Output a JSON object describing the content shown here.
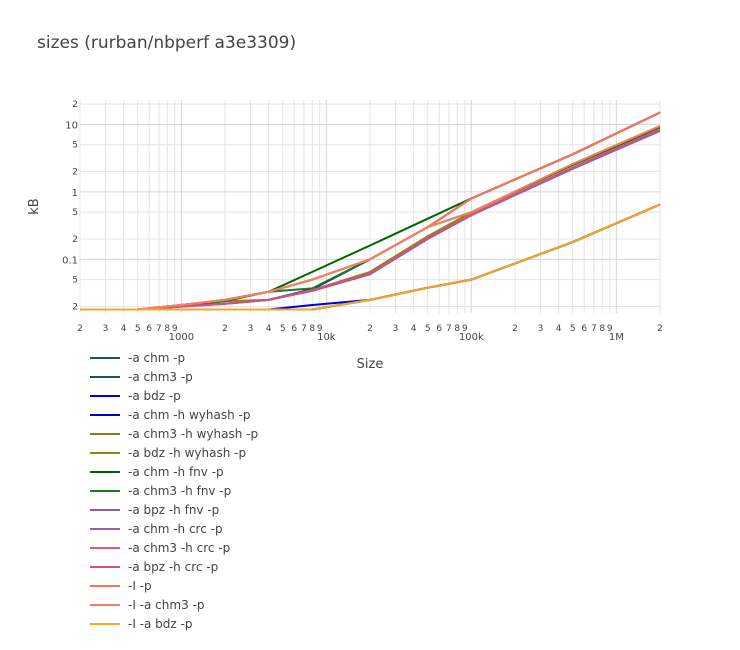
{
  "title": "sizes (rurban/nbperf a3e3309)",
  "chart_data": {
    "type": "line",
    "title": "sizes (rurban/nbperf a3e3309)",
    "xlabel": "Size",
    "ylabel": "kB",
    "x_scale": "log",
    "y_scale": "log",
    "xlim": [
      200,
      2000000
    ],
    "ylim": [
      0.016,
      23
    ],
    "grid": true,
    "legend_position": "bottom-left",
    "x_major_ticks": [
      {
        "value": 1000,
        "label": "1000"
      },
      {
        "value": 10000,
        "label": "10k"
      },
      {
        "value": 100000,
        "label": "100k"
      },
      {
        "value": 1000000,
        "label": "1M"
      }
    ],
    "x_minor_ticks": [
      {
        "value": 200,
        "label": "2"
      },
      {
        "value": 300,
        "label": "3"
      },
      {
        "value": 400,
        "label": "4"
      },
      {
        "value": 500,
        "label": "5"
      },
      {
        "value": 600,
        "label": "6"
      },
      {
        "value": 700,
        "label": "7"
      },
      {
        "value": 800,
        "label": "8"
      },
      {
        "value": 900,
        "label": "9"
      },
      {
        "value": 2000,
        "label": "2"
      },
      {
        "value": 3000,
        "label": "3"
      },
      {
        "value": 4000,
        "label": "4"
      },
      {
        "value": 5000,
        "label": "5"
      },
      {
        "value": 6000,
        "label": "6"
      },
      {
        "value": 7000,
        "label": "7"
      },
      {
        "value": 8000,
        "label": "8"
      },
      {
        "value": 9000,
        "label": "9"
      },
      {
        "value": 20000,
        "label": "2"
      },
      {
        "value": 30000,
        "label": "3"
      },
      {
        "value": 40000,
        "label": "4"
      },
      {
        "value": 50000,
        "label": "5"
      },
      {
        "value": 60000,
        "label": "6"
      },
      {
        "value": 70000,
        "label": "7"
      },
      {
        "value": 80000,
        "label": "8"
      },
      {
        "value": 90000,
        "label": "9"
      },
      {
        "value": 200000,
        "label": "2"
      },
      {
        "value": 300000,
        "label": "3"
      },
      {
        "value": 400000,
        "label": "4"
      },
      {
        "value": 500000,
        "label": "5"
      },
      {
        "value": 600000,
        "label": "6"
      },
      {
        "value": 700000,
        "label": "7"
      },
      {
        "value": 800000,
        "label": "8"
      },
      {
        "value": 900000,
        "label": "9"
      },
      {
        "value": 2000000,
        "label": "2"
      }
    ],
    "y_major_ticks": [
      {
        "value": 0.1,
        "label": "0.1"
      },
      {
        "value": 1,
        "label": "1"
      },
      {
        "value": 10,
        "label": "10"
      }
    ],
    "y_minor_ticks": [
      {
        "value": 0.02,
        "label": "2"
      },
      {
        "value": 0.05,
        "label": "5"
      },
      {
        "value": 0.2,
        "label": "2"
      },
      {
        "value": 0.5,
        "label": "5"
      },
      {
        "value": 2,
        "label": "2"
      },
      {
        "value": 5,
        "label": "5"
      },
      {
        "value": 20,
        "label": "2"
      }
    ],
    "series": [
      {
        "name": "-a chm -p",
        "color": "#1f4e79",
        "x": [
          200,
          500,
          1000,
          2000,
          4000,
          8000,
          20000,
          50000,
          100000,
          500000,
          2000000
        ],
        "y": [
          0.018,
          0.018,
          0.018,
          0.018,
          0.018,
          0.018,
          0.025,
          0.038,
          0.05,
          0.18,
          0.65
        ]
      },
      {
        "name": "-a chm3 -p",
        "color": "#1f4e79",
        "x": [
          200,
          500,
          1000,
          2000,
          4000,
          8000,
          20000,
          50000,
          100000,
          500000,
          2000000
        ],
        "y": [
          0.018,
          0.018,
          0.018,
          0.018,
          0.018,
          0.018,
          0.025,
          0.038,
          0.05,
          0.18,
          0.65
        ]
      },
      {
        "name": "-a bdz -p",
        "color": "#0000e0",
        "x": [
          200,
          500,
          1000,
          2000,
          4000,
          8000,
          20000,
          50000,
          100000,
          500000,
          2000000
        ],
        "y": [
          0.018,
          0.018,
          0.018,
          0.018,
          0.018,
          0.021,
          0.025,
          0.038,
          0.05,
          0.18,
          0.65
        ]
      },
      {
        "name": "-a chm -h wyhash -p",
        "color": "#0000d0",
        "x": [
          200,
          500,
          1000,
          2000,
          4000,
          8000,
          20000,
          50000,
          100000,
          500000,
          2000000
        ],
        "y": [
          0.018,
          0.018,
          0.02,
          0.022,
          0.025,
          0.036,
          0.1,
          0.3,
          0.8,
          3.6,
          15
        ]
      },
      {
        "name": "-a chm3 -h wyhash -p",
        "color": "#808020",
        "x": [
          200,
          500,
          1000,
          2000,
          4000,
          8000,
          20000,
          50000,
          100000,
          500000,
          2000000
        ],
        "y": [
          0.018,
          0.018,
          0.018,
          0.018,
          0.018,
          0.018,
          0.025,
          0.038,
          0.05,
          0.18,
          0.65
        ]
      },
      {
        "name": "-a bdz -h wyhash -p",
        "color": "#8a8a10",
        "x": [
          200,
          500,
          1000,
          2000,
          4000,
          8000,
          20000,
          50000,
          100000,
          500000,
          2000000
        ],
        "y": [
          0.018,
          0.018,
          0.021,
          0.024,
          0.025,
          0.035,
          0.065,
          0.22,
          0.5,
          2.5,
          9
        ]
      },
      {
        "name": "-a chm -h fnv -p",
        "color": "#006400",
        "x": [
          200,
          500,
          1000,
          2000,
          4000,
          8000,
          20000,
          50000,
          100000,
          500000,
          2000000
        ],
        "y": [
          0.018,
          0.018,
          0.021,
          0.025,
          0.033,
          0.065,
          0.16,
          0.4,
          0.8,
          3.6,
          15
        ]
      },
      {
        "name": "-a chm3 -h fnv -p",
        "color": "#1a7a1a",
        "x": [
          200,
          500,
          1000,
          2000,
          4000,
          8000,
          20000,
          50000,
          100000,
          500000,
          2000000
        ],
        "y": [
          0.018,
          0.018,
          0.02,
          0.024,
          0.033,
          0.037,
          0.1,
          0.3,
          0.5,
          2.5,
          9
        ]
      },
      {
        "name": "-a bpz -h fnv -p",
        "color": "#8e5ea2",
        "x": [
          200,
          500,
          1000,
          2000,
          4000,
          8000,
          20000,
          50000,
          100000,
          500000,
          2000000
        ],
        "y": [
          0.018,
          0.018,
          0.02,
          0.022,
          0.025,
          0.034,
          0.06,
          0.2,
          0.45,
          2.2,
          8
        ]
      },
      {
        "name": "-a chm -h crc -p",
        "color": "#9b5fa5",
        "x": [
          200,
          500,
          1000,
          2000,
          4000,
          8000,
          20000,
          50000,
          100000,
          500000,
          2000000
        ],
        "y": [
          0.018,
          0.018,
          0.021,
          0.025,
          0.033,
          0.05,
          0.1,
          0.3,
          0.8,
          3.6,
          15
        ]
      },
      {
        "name": "-a chm3 -h crc -p",
        "color": "#e05a78",
        "x": [
          200,
          500,
          1000,
          2000,
          4000,
          8000,
          20000,
          50000,
          100000,
          500000,
          2000000
        ],
        "y": [
          0.018,
          0.018,
          0.021,
          0.025,
          0.033,
          0.05,
          0.1,
          0.3,
          0.8,
          3.6,
          15
        ]
      },
      {
        "name": "-a bpz -h crc -p",
        "color": "#d6507a",
        "x": [
          200,
          500,
          1000,
          2000,
          4000,
          8000,
          20000,
          50000,
          100000,
          500000,
          2000000
        ],
        "y": [
          0.018,
          0.018,
          0.02,
          0.022,
          0.025,
          0.035,
          0.062,
          0.21,
          0.46,
          2.3,
          8.5
        ]
      },
      {
        "name": "-I -p",
        "color": "#f0785a",
        "x": [
          200,
          500,
          1000,
          2000,
          4000,
          8000,
          20000,
          50000,
          100000,
          500000,
          2000000
        ],
        "y": [
          0.018,
          0.018,
          0.021,
          0.025,
          0.033,
          0.05,
          0.1,
          0.3,
          0.8,
          3.6,
          15
        ]
      },
      {
        "name": "-I -a chm3 -p",
        "color": "#f08060",
        "x": [
          200,
          500,
          1000,
          2000,
          4000,
          8000,
          20000,
          50000,
          100000,
          500000,
          2000000
        ],
        "y": [
          0.018,
          0.018,
          0.021,
          0.025,
          0.033,
          0.05,
          0.1,
          0.3,
          0.5,
          2.6,
          9.5
        ]
      },
      {
        "name": "-I -a bdz -p",
        "color": "#f5a623",
        "x": [
          200,
          500,
          1000,
          2000,
          4000,
          8000,
          20000,
          50000,
          100000,
          500000,
          2000000
        ],
        "y": [
          0.018,
          0.018,
          0.018,
          0.018,
          0.018,
          0.018,
          0.025,
          0.038,
          0.05,
          0.18,
          0.65
        ]
      }
    ]
  }
}
